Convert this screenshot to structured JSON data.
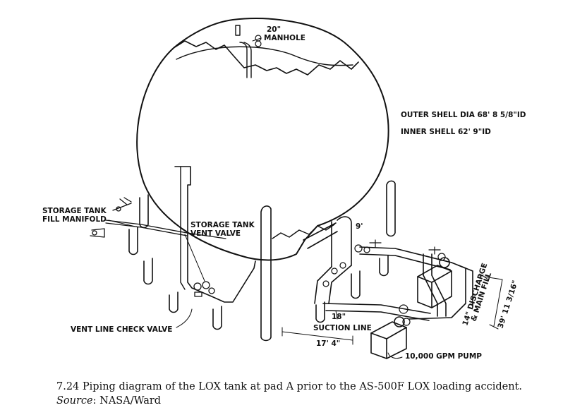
{
  "labels": {
    "manhole_size": "20\"",
    "manhole": "MANHOLE",
    "outer_shell": "OUTER SHELL DIA 68' 8 5/8\"ID",
    "inner_shell": "INNER SHELL 62' 9\"ID",
    "fill_manifold_1": "STORAGE TANK",
    "fill_manifold_2": "FILL MANIFOLD",
    "vent_valve_1": "STORAGE TANK",
    "vent_valve_2": "VENT VALVE",
    "vent_check": "VENT LINE CHECK VALVE",
    "riser_height": "9'",
    "suction_size": "18\"",
    "suction_line": "SUCTION LINE",
    "suction_len": "17' 4\"",
    "discharge_1": "14\" DISCHARGE",
    "discharge_2": "& MAIN FILL",
    "discharge_len": "39' 11 3/16\"",
    "pump": "10,000 GPM PUMP"
  },
  "caption": {
    "number": "7.24",
    "text": "Piping diagram of the LOX tank at pad A prior to the AS-500F LOX loading accident.",
    "source_key": "Source",
    "source_value": ": NASA/Ward"
  }
}
